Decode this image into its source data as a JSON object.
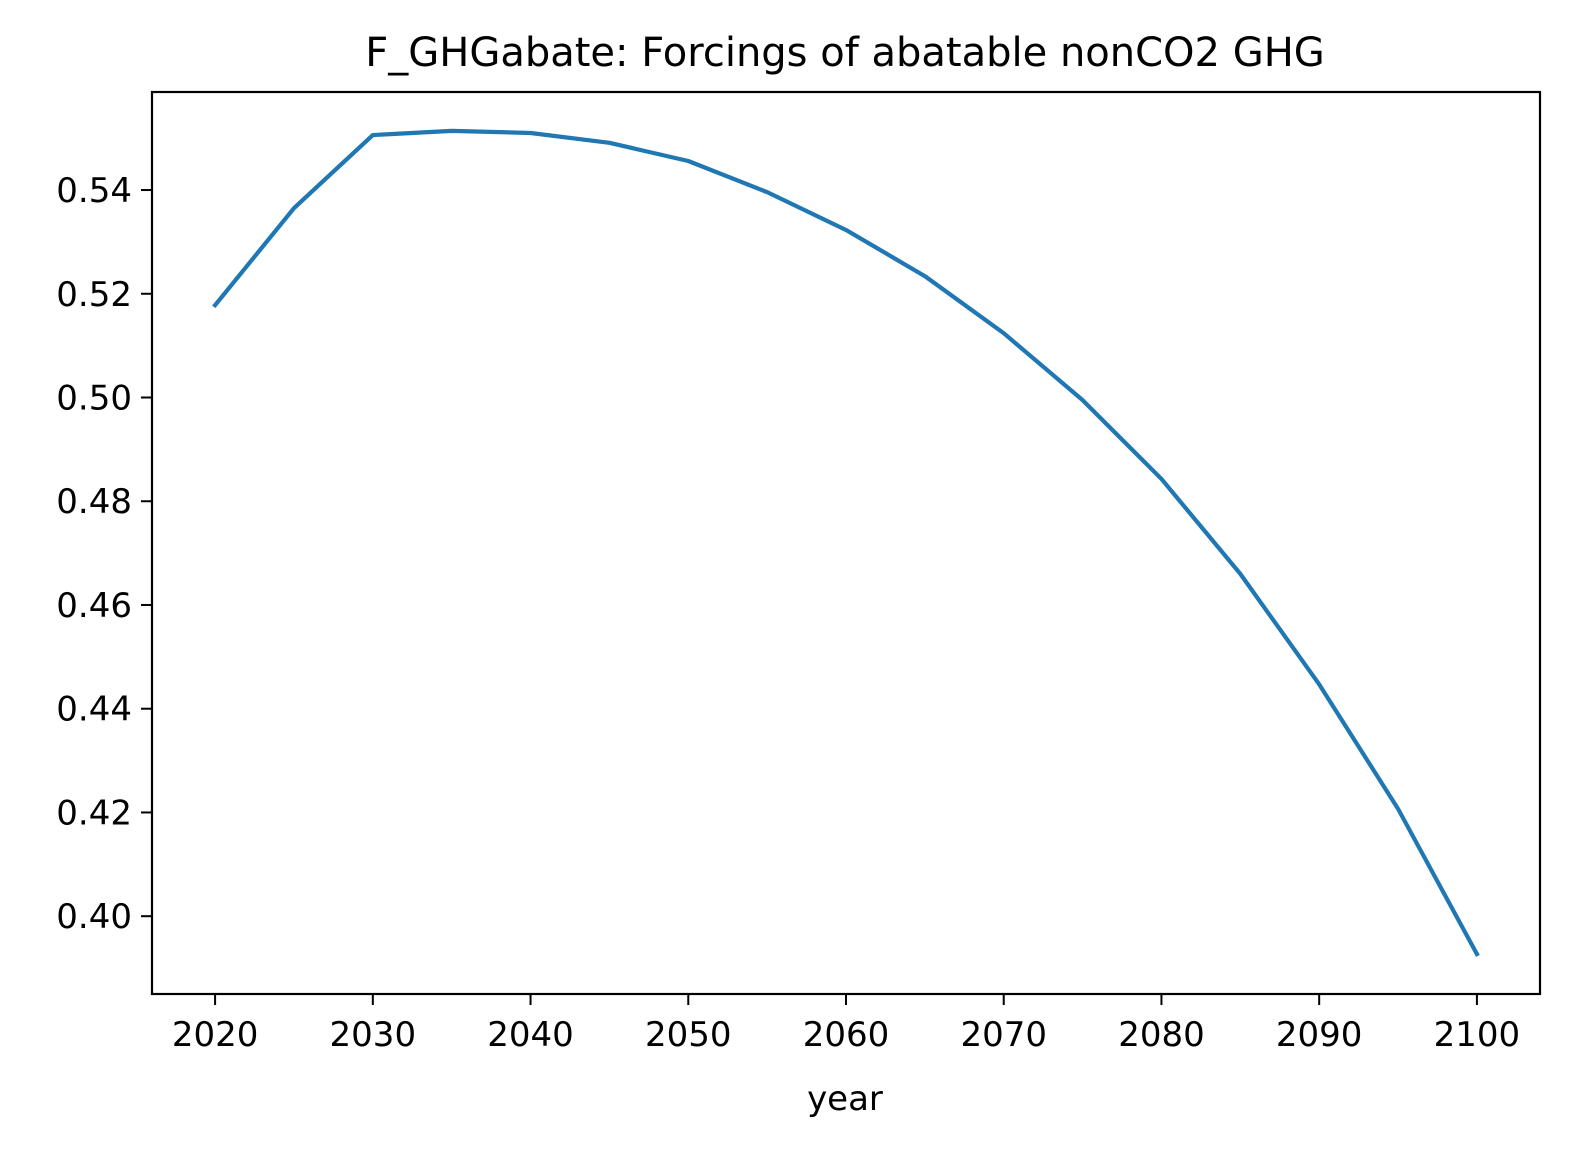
{
  "chart_data": {
    "type": "line",
    "title": "F_GHGabate: Forcings of abatable nonCO2 GHG",
    "xlabel": "year",
    "ylabel": "",
    "xlim": [
      2016,
      2104
    ],
    "ylim": [
      0.385,
      0.5589
    ],
    "xticks": [
      2020,
      2030,
      2040,
      2050,
      2060,
      2070,
      2080,
      2090,
      2100
    ],
    "xtick_labels": [
      "2020",
      "2030",
      "2040",
      "2050",
      "2060",
      "2070",
      "2080",
      "2090",
      "2100"
    ],
    "yticks": [
      0.4,
      0.42,
      0.44,
      0.46,
      0.48,
      0.5,
      0.52,
      0.54
    ],
    "ytick_labels": [
      "0.40",
      "0.42",
      "0.44",
      "0.46",
      "0.48",
      "0.50",
      "0.52",
      "0.54"
    ],
    "grid": false,
    "legend": "none",
    "series": [
      {
        "color": "#1f77b4",
        "x": [
          2020,
          2025,
          2030,
          2035,
          2040,
          2045,
          2050,
          2055,
          2060,
          2065,
          2070,
          2075,
          2080,
          2085,
          2090,
          2095,
          2100
        ],
        "y": [
          0.5178,
          0.5365,
          0.5506,
          0.5514,
          0.551,
          0.5491,
          0.5456,
          0.5396,
          0.5323,
          0.5234,
          0.5124,
          0.4995,
          0.4843,
          0.466,
          0.4447,
          0.4207,
          0.3927
        ]
      }
    ]
  }
}
